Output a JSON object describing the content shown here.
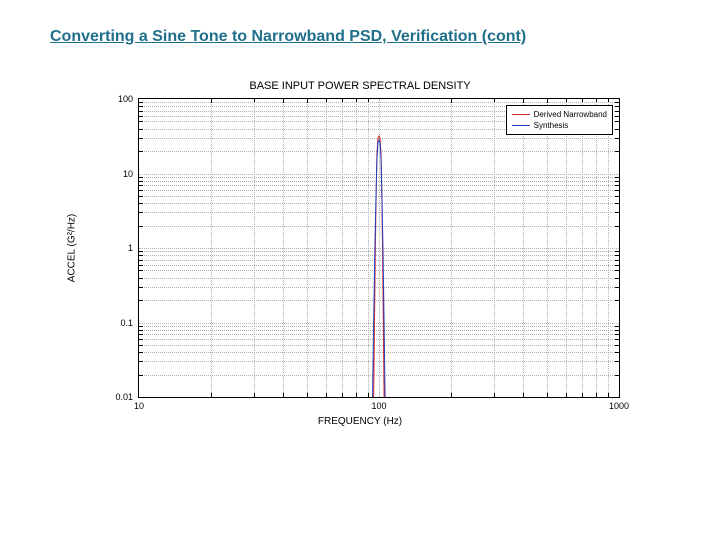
{
  "slide": {
    "title": "Converting a Sine Tone to Narrowband PSD, Verification (cont)",
    "title_color": "#1f6f8b"
  },
  "chart": {
    "type": "line",
    "title": "BASE INPUT POWER SPECTRAL DENSITY",
    "title_fontsize": 11,
    "xlabel": "FREQUENCY (Hz)",
    "ylabel": "ACCEL (G²/Hz)",
    "label_fontsize": 10,
    "background_color": "#ffffff",
    "grid_color": "#b0b0b0",
    "x_scale": "log",
    "y_scale": "log",
    "xlim": [
      10,
      1000
    ],
    "ylim": [
      0.01,
      100
    ],
    "xtick_labels": [
      "10",
      "100",
      "1000"
    ],
    "ytick_labels": [
      "0.01",
      "0.1",
      "1",
      "10",
      "100"
    ],
    "x_minor_ticks": [
      20,
      30,
      40,
      50,
      60,
      70,
      80,
      90,
      200,
      300,
      400,
      500,
      600,
      700,
      800,
      900
    ],
    "y_minor_ticks": [
      0.02,
      0.03,
      0.04,
      0.05,
      0.06,
      0.07,
      0.08,
      0.09,
      0.2,
      0.3,
      0.4,
      0.5,
      0.6,
      0.7,
      0.8,
      0.9,
      2,
      3,
      4,
      5,
      6,
      7,
      8,
      9,
      20,
      30,
      40,
      50,
      60,
      70,
      80,
      90
    ],
    "legend": {
      "position": "top-right",
      "items": [
        {
          "label": "Derived Narrowband",
          "color": "#d62728"
        },
        {
          "label": "Synthesis",
          "color": "#2040c0"
        }
      ]
    },
    "series": [
      {
        "name": "Derived Narrowband",
        "color": "#d62728",
        "line_width": 1,
        "x": [
          95,
          96,
          97,
          98,
          99,
          100,
          101,
          102,
          103,
          104,
          105
        ],
        "y": [
          0.01,
          0.2,
          3,
          18,
          30,
          32,
          30,
          18,
          3,
          0.2,
          0.01
        ]
      },
      {
        "name": "Synthesis",
        "color": "#2040c0",
        "line_width": 1,
        "x": [
          94,
          95,
          96,
          97,
          98,
          99,
          100,
          101,
          102,
          103,
          104,
          105,
          106
        ],
        "y": [
          0.01,
          0.1,
          0.8,
          4,
          15,
          26,
          28,
          26,
          15,
          4,
          0.8,
          0.1,
          0.01
        ]
      }
    ]
  }
}
